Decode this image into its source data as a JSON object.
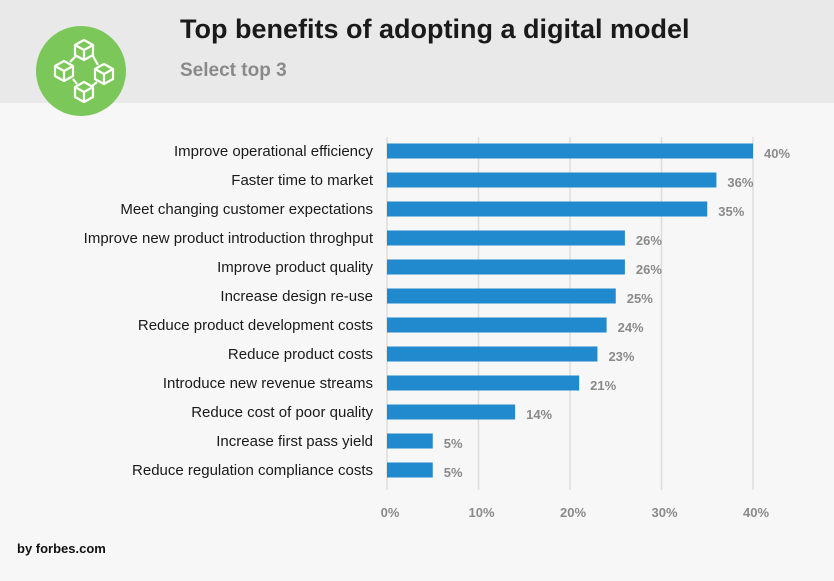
{
  "header": {
    "title": "Top benefits of adopting a digital model",
    "subtitle": "Select top 3",
    "logo_icon": "blockchain-cubes-icon"
  },
  "footer": {
    "source": "by forbes.com"
  },
  "colors": {
    "bar": "#2189ce",
    "logo": "#7cc75a",
    "value_label": "#8a8a8a",
    "grid": "#dddddd"
  },
  "chart_data": {
    "type": "bar",
    "orientation": "horizontal",
    "title": "Top benefits of adopting a digital model",
    "subtitle": "Select top 3",
    "categories": [
      "Improve operational efficiency",
      "Faster time to market",
      "Meet changing customer expectations",
      "Improve new product introduction throghput",
      "Improve product quality",
      "Increase design re-use",
      "Reduce product development costs",
      "Reduce product costs",
      "Introduce new revenue streams",
      "Reduce cost of poor quality",
      "Increase first pass yield",
      "Reduce regulation compliance costs"
    ],
    "values": [
      40,
      36,
      35,
      26,
      26,
      25,
      24,
      23,
      21,
      14,
      5,
      5
    ],
    "value_labels": [
      "40%",
      "36%",
      "35%",
      "26%",
      "26%",
      "25%",
      "24%",
      "23%",
      "21%",
      "14%",
      "5%",
      "5%"
    ],
    "xticks": [
      "0%",
      "10%",
      "20%",
      "30%",
      "40%"
    ],
    "xtick_values": [
      0,
      10,
      20,
      30,
      40
    ],
    "xlim": [
      0,
      40
    ],
    "grid": true,
    "xlabel": "",
    "ylabel": ""
  }
}
